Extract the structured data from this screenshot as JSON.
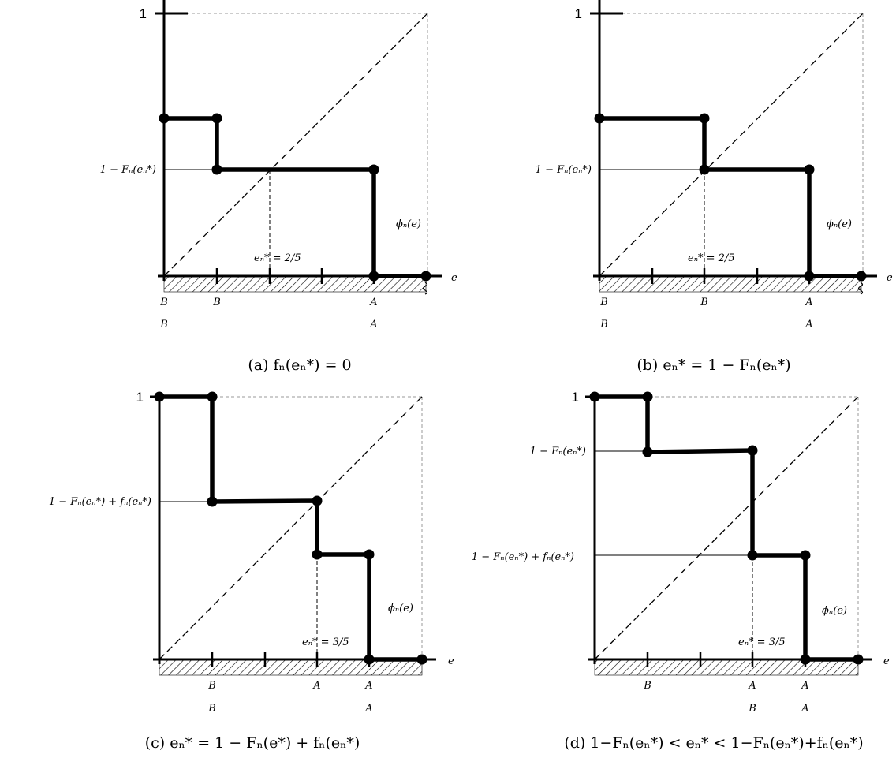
{
  "panels": [
    {
      "caption": "(a)  fₙ(eₙ*) = 0",
      "one_label": "1",
      "y_label": "1 − Fₙ(eₙ*)",
      "e_star_label": "eₙ* = 2/5",
      "phi_label": "ϕₙ(e)",
      "axis_label": "e",
      "row1": [
        "B",
        "B",
        "A"
      ],
      "row2": [
        "B",
        "A"
      ]
    },
    {
      "caption": "(b)  eₙ* = 1 − Fₙ(eₙ*)",
      "one_label": "1",
      "y_label": "1 − Fₙ(eₙ*)",
      "e_star_label": "eₙ* = 2/5",
      "phi_label": "ϕₙ(e)",
      "axis_label": "e",
      "row1": [
        "B",
        "B",
        "A"
      ],
      "row2": [
        "B",
        "A"
      ]
    },
    {
      "caption": "(c)  eₙ* = 1 − Fₙ(e*) + fₙ(eₙ*)",
      "one_label": "1",
      "y_label": "1 − Fₙ(eₙ*) + fₙ(eₙ*)",
      "e_star_label": "eₙ* = 3/5",
      "phi_label": "ϕₙ(e)",
      "axis_label": "e",
      "row1": [
        "B",
        "A",
        "A"
      ],
      "row2": [
        "B",
        "A"
      ]
    },
    {
      "caption": "(d)  1−Fₙ(eₙ*) < eₙ* < 1−Fₙ(eₙ*)+fₙ(eₙ*)",
      "one_label": "1",
      "y_label_upper": "1 − Fₙ(eₙ*)",
      "y_label": "1 − Fₙ(eₙ*) + fₙ(eₙ*)",
      "e_star_label": "eₙ* = 3/5",
      "phi_label": "ϕₙ(e)",
      "axis_label": "e",
      "row1": [
        "B",
        "A",
        "A"
      ],
      "row2": [
        "B",
        "A"
      ]
    }
  ]
}
